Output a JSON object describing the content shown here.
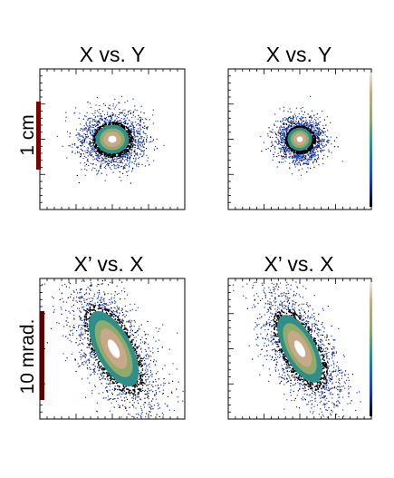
{
  "chart_data": [
    {
      "type": "density-scatter",
      "title": "X vs. Y",
      "side_label": "1 cm",
      "colorbar": false,
      "blob": {
        "cx": 0,
        "cy": 0,
        "sx": 0.28,
        "sy": 0.25,
        "rho": 0.0,
        "halo": 0.42
      },
      "scale_bar_color": "#7a0000"
    },
    {
      "type": "density-scatter",
      "title": "X vs. Y",
      "side_label": "",
      "colorbar": true,
      "blob": {
        "cx": 0,
        "cy": 0,
        "sx": 0.21,
        "sy": 0.2,
        "rho": 0.0,
        "halo": 0.26
      }
    },
    {
      "type": "density-scatter",
      "title": "X’ vs. X",
      "side_label": "10 mrad.",
      "colorbar": false,
      "blob": {
        "cx": 0.02,
        "cy": 0.0,
        "sx": 0.3,
        "sy": 0.72,
        "rho": 0.0,
        "angle": 28,
        "halo": 0.55
      },
      "scale_bar_color": "#5a0000"
    },
    {
      "type": "density-scatter",
      "title": "X’ vs. X",
      "side_label": "",
      "colorbar": true,
      "blob": {
        "cx": 0.0,
        "cy": 0.0,
        "sx": 0.27,
        "sy": 0.65,
        "rho": 0.0,
        "angle": 28,
        "halo": 0.45
      }
    }
  ],
  "palette": {
    "halo": "#1f3fbf",
    "edge": "#000000",
    "mid1": "#2e8f88",
    "mid2": "#8faa6a",
    "mid3": "#c8a888",
    "core": "#ffffff"
  }
}
